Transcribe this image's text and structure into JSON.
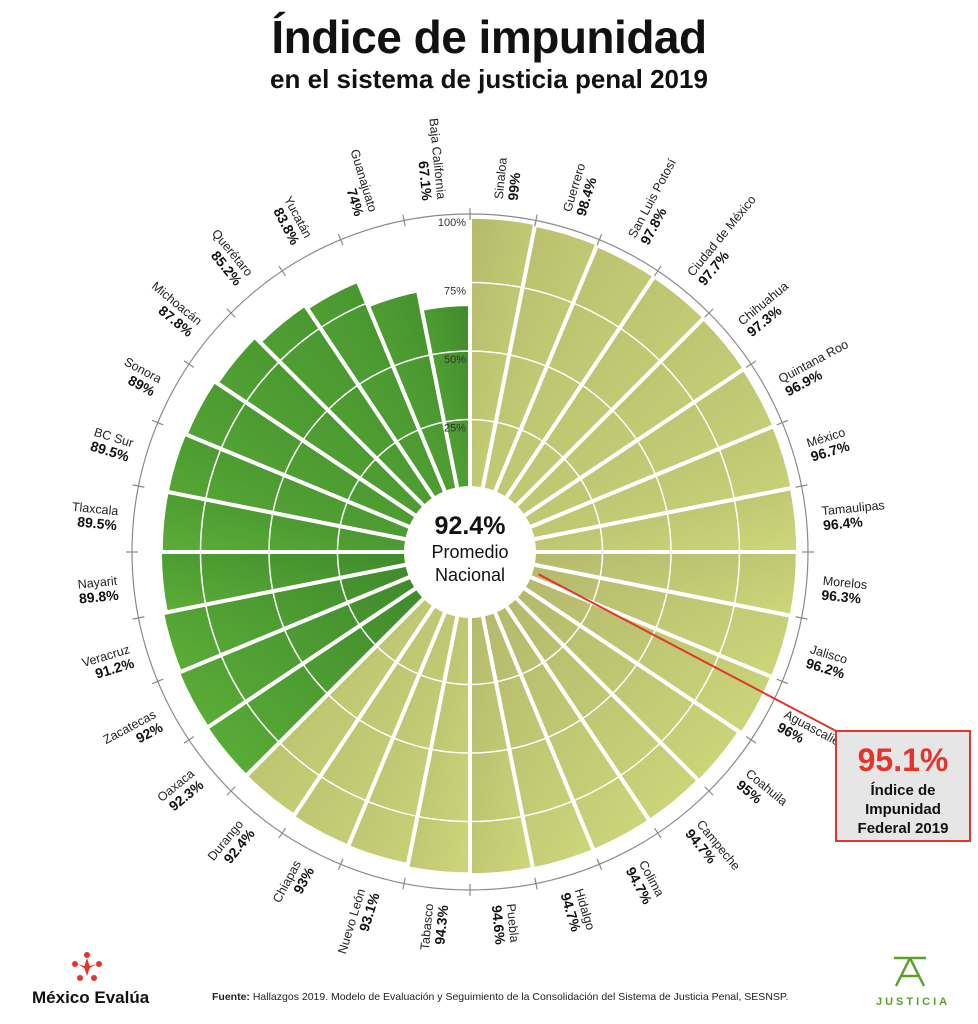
{
  "header": {
    "title": "Índice de impunidad",
    "subtitle": "en el sistema de justicia penal 2019"
  },
  "center": {
    "value": "92.4%",
    "line1": "Promedio",
    "line2": "Nacional"
  },
  "callout": {
    "value": "95.1%",
    "label": "Índice de Impunidad Federal 2019"
  },
  "footer": {
    "source_prefix": "Fuente:",
    "source_text": "Hallazgos 2019. Modelo de Evaluación y Seguimiento de la Consolidación del Sistema de Justicia Penal, SESNSP.",
    "brand_left": "México Evalúa",
    "brand_right": "JUSTICIA"
  },
  "colors": {
    "above_average_start": "#b4b96c",
    "above_average_end": "#cdd77a",
    "below_average_start": "#3f8a2c",
    "below_average_end": "#5cae38",
    "accent": "#e2352b"
  },
  "chart_data": {
    "type": "radial-bar",
    "scale_ticks": [
      "25%",
      "50%",
      "75%",
      "100%"
    ],
    "ylim": [
      0,
      100
    ],
    "categories": [
      "Sinaloa",
      "Guerrero",
      "San Luis Potosí",
      "Ciudad de México",
      "Chihuahua",
      "Quintana Roo",
      "México",
      "Tamaulipas",
      "Morelos",
      "Jalisco",
      "Aguascalientes",
      "Coahuila",
      "Campeche",
      "Colima",
      "Hidalgo",
      "Puebla",
      "Tabasco",
      "Nuevo León",
      "Chiapas",
      "Durango",
      "Oaxaca",
      "Zacatecas",
      "Veracruz",
      "Nayarit",
      "Tlaxcala",
      "BC Sur",
      "Sonora",
      "Michoacán",
      "Querétaro",
      "Yucatán",
      "Guanajuato",
      "Baja California"
    ],
    "values": [
      99,
      98.4,
      97.8,
      97.7,
      97.3,
      96.9,
      96.7,
      96.4,
      96.3,
      96.2,
      96,
      95,
      94.7,
      94.7,
      94.7,
      94.6,
      94.3,
      93.1,
      93,
      92.4,
      92.3,
      92,
      91.2,
      89.8,
      89.5,
      89.5,
      89,
      87.8,
      85.2,
      83.8,
      74,
      67.1
    ],
    "value_labels": [
      "99%",
      "98.4%",
      "97.8%",
      "97.7%",
      "97.3%",
      "96.9%",
      "96.7%",
      "96.4%",
      "96.3%",
      "96.2%",
      "96%",
      "95%",
      "94.7%",
      "94.7%",
      "94.7%",
      "94.6%",
      "94.3%",
      "93.1%",
      "93%",
      "92.4%",
      "92.3%",
      "92%",
      "91.2%",
      "89.8%",
      "89.5%",
      "89.5%",
      "89%",
      "87.8%",
      "85.2%",
      "83.8%",
      "74%",
      "67.1%"
    ],
    "average": 92.4,
    "federal": 95.1
  }
}
